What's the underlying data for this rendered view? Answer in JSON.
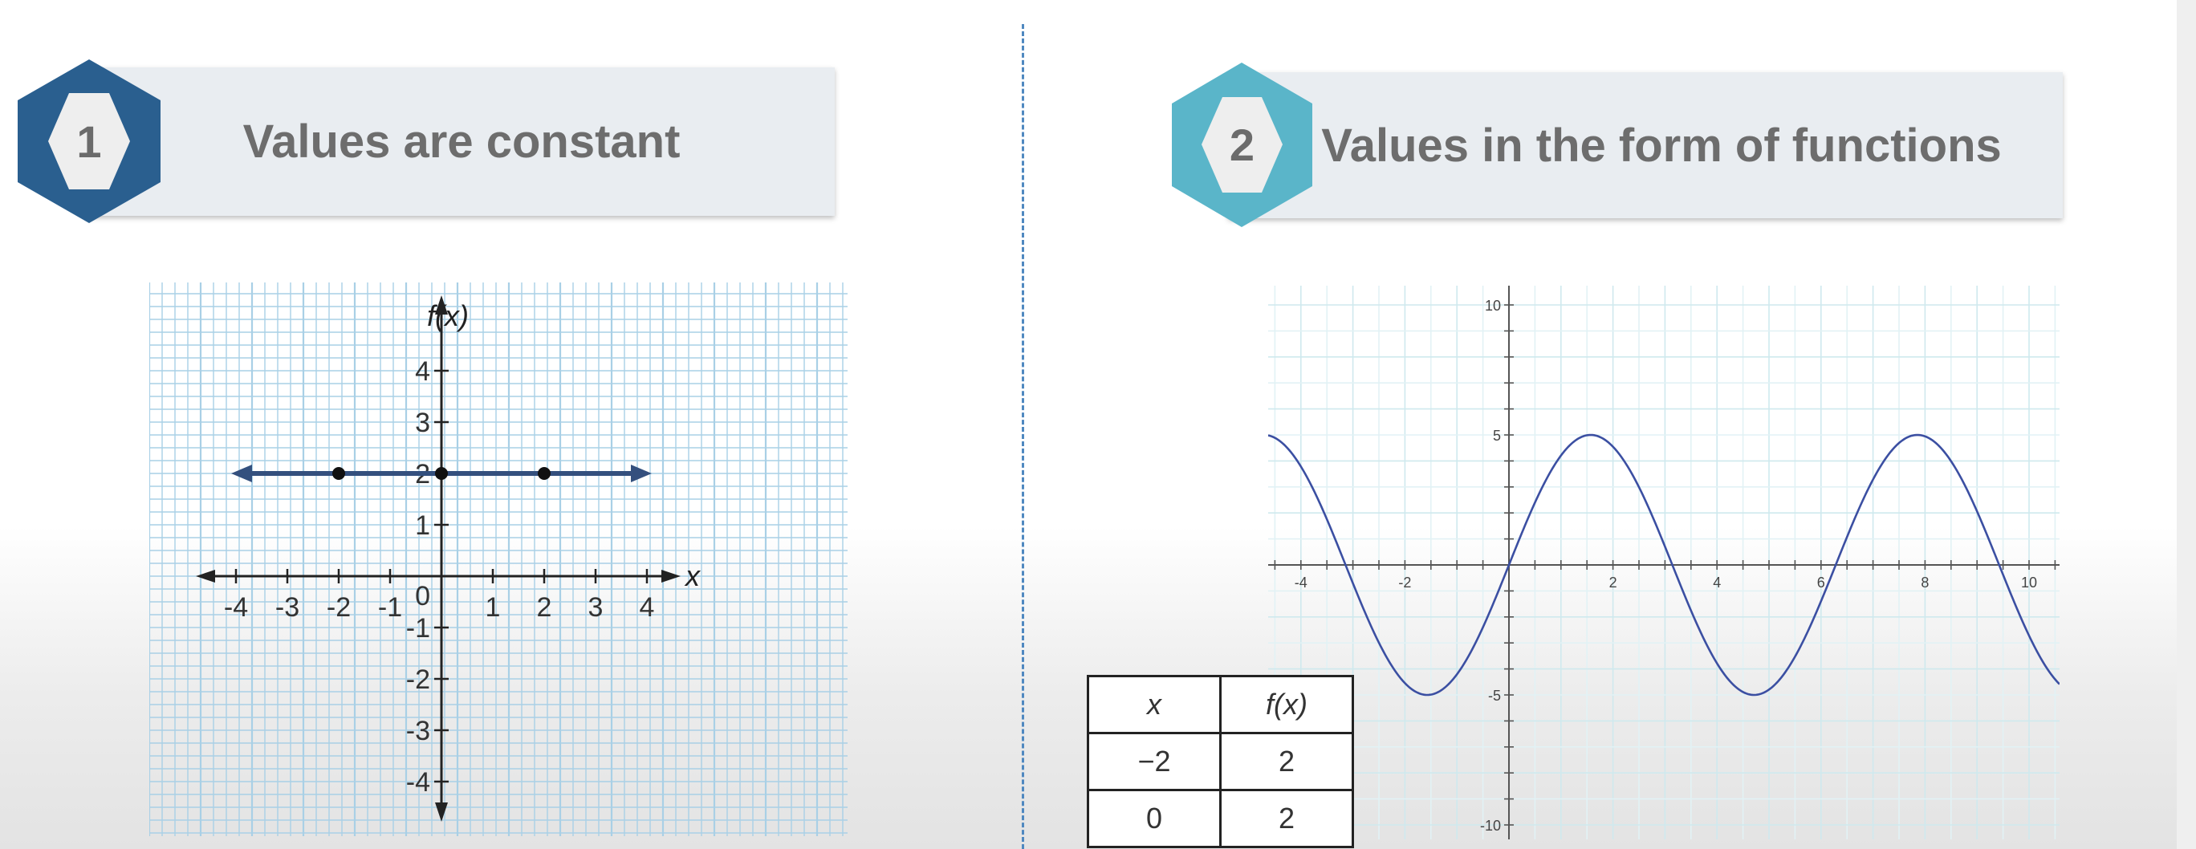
{
  "section1": {
    "number": "1",
    "title": "Values are constant",
    "hex_color": "#2a5f8f"
  },
  "section2": {
    "number": "2",
    "title": "Values in the form of functions",
    "hex_color": "#5ab5c9"
  },
  "chart_data": [
    {
      "type": "line",
      "title": "",
      "xlabel": "x",
      "ylabel": "f(x)",
      "xlim": [
        -4,
        4
      ],
      "ylim": [
        -4,
        4
      ],
      "x_ticks": [
        "-4",
        "-3",
        "-2",
        "-1",
        "1",
        "2",
        "3",
        "4"
      ],
      "y_ticks": [
        "4",
        "3",
        "2",
        "1",
        "-1",
        "-2",
        "-3",
        "-4"
      ],
      "origin_label": "0",
      "series": [
        {
          "x": [
            -4,
            4
          ],
          "values": [
            2,
            2
          ]
        }
      ],
      "points": [
        {
          "x": -2,
          "y": 2
        },
        {
          "x": 0,
          "y": 2
        },
        {
          "x": 2,
          "y": 2
        }
      ],
      "grid": true,
      "line_color": "#34507e"
    },
    {
      "type": "line",
      "title": "",
      "xlabel": "",
      "ylabel": "",
      "xlim": [
        -4.6,
        10.6
      ],
      "ylim": [
        -10,
        10
      ],
      "x_ticks": [
        "-4",
        "-2",
        "2",
        "4",
        "6",
        "8",
        "10"
      ],
      "y_ticks": [
        "10",
        "5",
        "-5",
        "-10"
      ],
      "function": "5*sin(x)",
      "grid": true,
      "line_color": "#3b4fa2"
    }
  ],
  "table": {
    "headers": [
      "x",
      "f(x)"
    ],
    "rows": [
      [
        "−2",
        "2"
      ],
      [
        "0",
        "2"
      ]
    ]
  }
}
